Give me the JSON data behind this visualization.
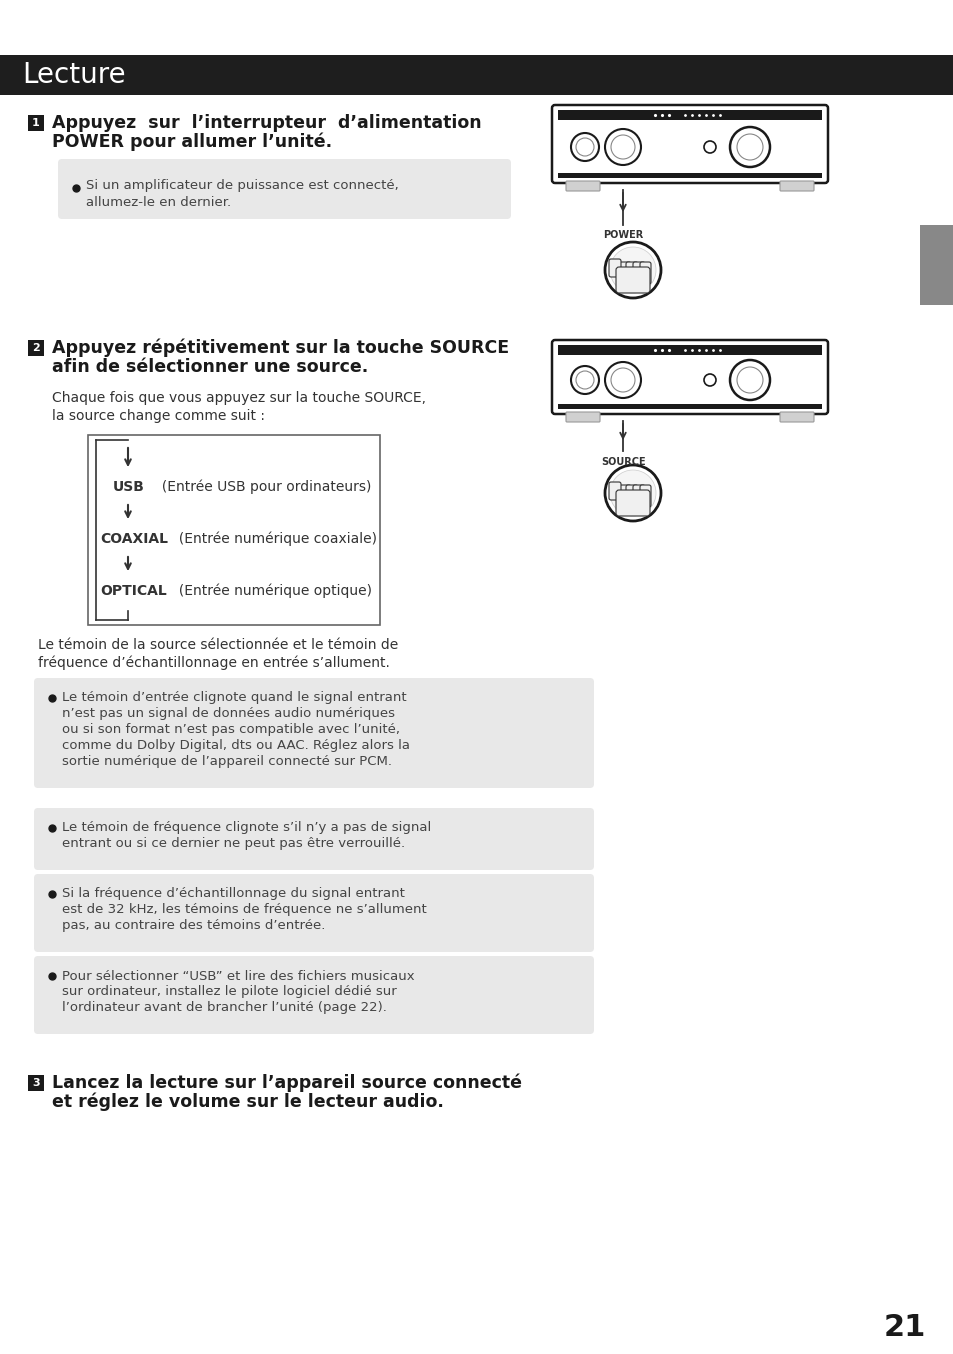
{
  "page_bg": "#ffffff",
  "header_bg": "#1e1e1e",
  "header_text": "Lecture",
  "header_text_color": "#ffffff",
  "tab_color": "#888888",
  "note_bg": "#e8e8e8",
  "page_number": "21",
  "section1_title_line1": "Appuyez  sur  l’interrupteur  d’alimentation",
  "section1_title_line2": "POWER pour allumer l’unité.",
  "section1_note_line1": "Si un amplificateur de puissance est connecté,",
  "section1_note_line2": "allumez-le en dernier.",
  "section2_title_line1": "Appuyez répétitivement sur la touche SOURCE",
  "section2_title_line2": "afin de sélectionner une source.",
  "section2_body_line1": "Chaque fois que vous appuyez sur la touche SOURCE,",
  "section2_body_line2": "la source change comme suit :",
  "flow_usb_label": "USB",
  "flow_usb_desc": "  (Entrée USB pour ordinateurs)",
  "flow_coaxial_label": "COAXIAL",
  "flow_coaxial_desc": "  (Entrée numérique coaxiale)",
  "flow_optical_label": "OPTICAL",
  "flow_optical_desc": "  (Entrée numérique optique)",
  "witness_text_line1": "Le témoin de la source sélectionnée et le témoin de",
  "witness_text_line2": "fréquence d’échantillonnage en entrée s’allument.",
  "note1_line1": "Le témoin d’entrée clignote quand le signal entrant",
  "note1_line2": "n’est pas un signal de données audio numériques",
  "note1_line3": "ou si son format n’est pas compatible avec l’unité,",
  "note1_line4": "comme du Dolby Digital, dts ou AAC. Réglez alors la",
  "note1_line5": "sortie numérique de l’appareil connecté sur PCM.",
  "note2_line1": "Le témoin de fréquence clignote s’il n’y a pas de signal",
  "note2_line2": "entrant ou si ce dernier ne peut pas être verrouillé.",
  "note3_line1": "Si la fréquence d’échantillonnage du signal entrant",
  "note3_line2": "est de 32 kHz, les témoins de fréquence ne s’allument",
  "note3_line3": "pas, au contraire des témoins d’entrée.",
  "note4_line1": "Pour sélectionner “USB” et lire des fichiers musicaux",
  "note4_line2": "sur ordinateur, installez le pilote logiciel dédié sur",
  "note4_line3": "l’ordinateur avant de brancher l’unité (page 22).",
  "section3_title_line1": "Lancez la lecture sur l’appareil source connecté",
  "section3_title_line2": "et réglez le volume sur le lecteur audio."
}
